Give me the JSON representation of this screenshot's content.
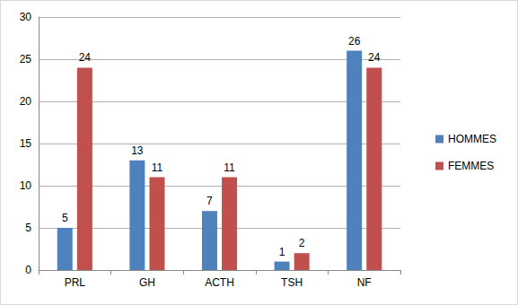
{
  "chart_data": {
    "type": "bar",
    "categories": [
      "PRL",
      "GH",
      "ACTH",
      "TSH",
      "NF"
    ],
    "series": [
      {
        "name": "HOMMES",
        "color": "#4f81bd",
        "values": [
          5,
          13,
          7,
          1,
          26
        ]
      },
      {
        "name": "FEMMES",
        "color": "#c0504d",
        "values": [
          24,
          11,
          11,
          2,
          24
        ]
      }
    ],
    "ylim": [
      0,
      30
    ],
    "yticks": [
      0,
      5,
      10,
      15,
      20,
      25,
      30
    ],
    "grid": true,
    "legend": "right",
    "data_labels": true
  }
}
